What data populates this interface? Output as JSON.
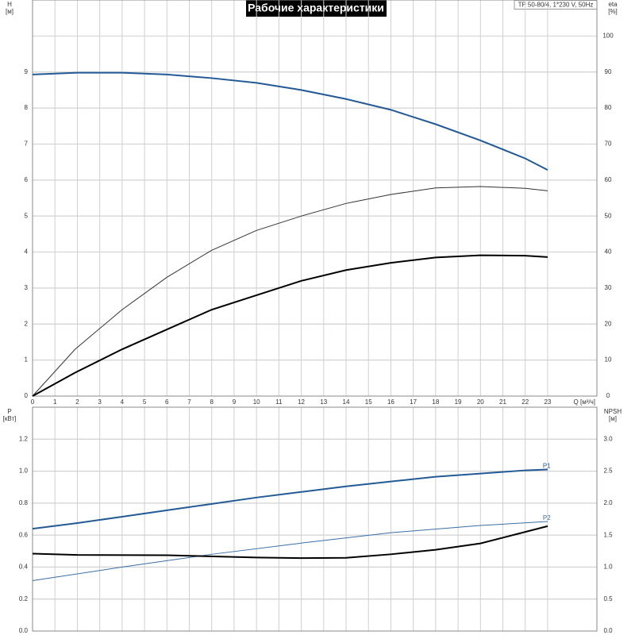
{
  "header": {
    "title": "Рабочие характеристики",
    "model": "TP 50-80/4, 1*230 V, 50Hz"
  },
  "chart_data": [
    {
      "type": "line",
      "y_label": "H",
      "y_unit": "[м]",
      "y2_label": "eta",
      "y2_unit": "[%]",
      "x_label": "Q [м³/ч]",
      "xlim": [
        0,
        25.2
      ],
      "xticks": [
        0,
        1,
        2,
        3,
        4,
        5,
        6,
        7,
        8,
        9,
        10,
        11,
        12,
        13,
        14,
        15,
        16,
        17,
        18,
        19,
        20,
        21,
        22,
        23
      ],
      "ylim": [
        0,
        11
      ],
      "yticks": [
        0,
        1,
        2,
        3,
        4,
        5,
        6,
        7,
        8,
        9
      ],
      "y2lim": [
        0,
        110
      ],
      "y2ticks": [
        0,
        10,
        20,
        30,
        40,
        50,
        60,
        70,
        80,
        90,
        100
      ],
      "grid": true,
      "series": [
        {
          "color": "#235a96",
          "width": 2,
          "x": [
            0,
            2,
            4,
            6,
            8,
            10,
            12,
            14,
            16,
            18,
            20,
            22,
            23
          ],
          "values": [
            8.93,
            8.98,
            8.98,
            8.93,
            8.83,
            8.7,
            8.5,
            8.25,
            7.95,
            7.55,
            7.1,
            6.6,
            6.28
          ]
        },
        {
          "color": "#333333",
          "width": 1,
          "axis": "y2",
          "x": [
            0,
            1.9,
            4,
            6,
            8,
            10,
            12,
            14,
            16,
            18,
            20,
            22,
            23
          ],
          "values": [
            0,
            13,
            24,
            33,
            40.5,
            46,
            50,
            53.5,
            56,
            57.8,
            58.2,
            57.7,
            57
          ]
        },
        {
          "color": "#000000",
          "width": 2,
          "axis": "y2",
          "x": [
            0,
            1.9,
            4,
            6,
            8,
            10,
            12,
            14,
            16,
            18,
            20,
            22,
            23
          ],
          "values": [
            0,
            6.5,
            13,
            18.5,
            24,
            28,
            32,
            35,
            37,
            38.5,
            39.1,
            39,
            38.6
          ]
        }
      ]
    },
    {
      "type": "line",
      "y_label": "P",
      "y_unit": "[кВт]",
      "y2_label": "NPSH",
      "y2_unit": "[м]",
      "xlim": [
        0,
        25.2
      ],
      "ylim": [
        0,
        1.4
      ],
      "yticks": [
        {
          "value": 0,
          "label": "0.0"
        },
        0.2,
        0.4,
        0.6,
        0.8,
        {
          "value": 1,
          "label": "1.0"
        },
        1.2
      ],
      "y2lim": [
        0,
        3.5
      ],
      "y2ticks": [
        {
          "value": 0,
          "label": "0.0"
        },
        0.5,
        {
          "value": 1,
          "label": "1.0"
        },
        1.5,
        {
          "value": 2,
          "label": "2.0"
        },
        2.5,
        {
          "value": 3,
          "label": "3.0"
        }
      ],
      "grid": true,
      "series": [
        {
          "name": "P1",
          "color": "#235a96",
          "width": 2,
          "x": [
            0,
            2,
            4,
            6,
            8,
            10,
            12,
            14,
            16,
            18,
            20,
            22,
            23
          ],
          "values": [
            0.64,
            0.675,
            0.715,
            0.755,
            0.795,
            0.835,
            0.87,
            0.905,
            0.935,
            0.965,
            0.985,
            1.005,
            1.01
          ]
        },
        {
          "name": "P2",
          "color": "#3a6ea5",
          "width": 1,
          "x": [
            0,
            4,
            8,
            12,
            16,
            20,
            23
          ],
          "values": [
            0.315,
            0.4,
            0.48,
            0.55,
            0.615,
            0.66,
            0.685
          ]
        },
        {
          "color": "#000000",
          "width": 2,
          "axis": "y2",
          "x": [
            0,
            2,
            6,
            10,
            12,
            14,
            16,
            18,
            20,
            22,
            23
          ],
          "values": [
            1.21,
            1.19,
            1.185,
            1.15,
            1.14,
            1.145,
            1.2,
            1.27,
            1.37,
            1.55,
            1.64
          ]
        }
      ]
    }
  ]
}
